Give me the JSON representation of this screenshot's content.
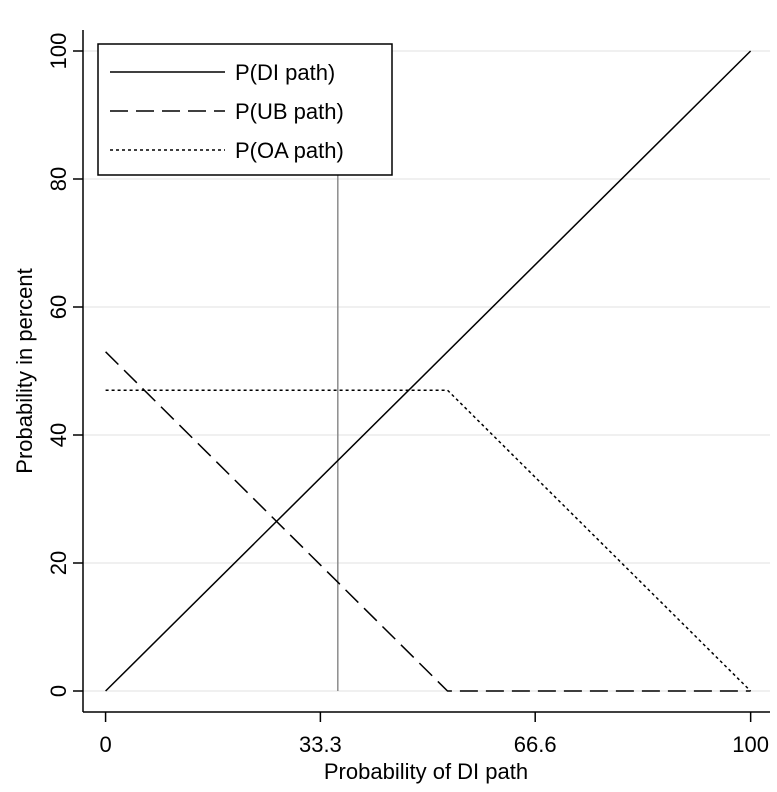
{
  "chart_data": {
    "type": "line",
    "xlabel": "Probability of DI path",
    "ylabel": "Probability in percent",
    "xlim": [
      -3.5,
      103
    ],
    "ylim": [
      -3,
      100
    ],
    "xticks": [
      0,
      33.3,
      66.6,
      100
    ],
    "xtick_labels": [
      "0",
      "33.3",
      "66.6",
      "100"
    ],
    "yticks": [
      0,
      20,
      40,
      60,
      80,
      100
    ],
    "ytick_labels": [
      "0",
      "20",
      "40",
      "60",
      "80",
      "100"
    ],
    "grid": "horizontal",
    "legend_position": "top-left",
    "reference_line_x": 36,
    "series": [
      {
        "name": "P(DI path)",
        "style": "solid",
        "x": [
          0,
          100
        ],
        "y": [
          0,
          100
        ]
      },
      {
        "name": "P(UB path)",
        "style": "dashed",
        "x": [
          0,
          53,
          100
        ],
        "y": [
          53,
          0,
          0
        ]
      },
      {
        "name": "P(OA path)",
        "style": "dotted",
        "x": [
          0,
          53,
          100
        ],
        "y": [
          47,
          47,
          0
        ]
      }
    ],
    "colors": {
      "lines": "#000000",
      "grid": "#e6e6e6",
      "reference_line": "#8c8c8c"
    }
  }
}
